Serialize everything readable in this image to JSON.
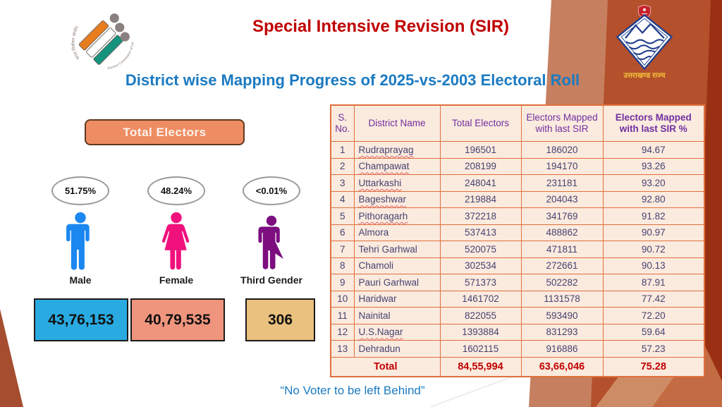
{
  "slide": {
    "title": "Special Intensive Revision (SIR)",
    "subtitle": "District wise Mapping Progress of 2025-vs-2003 Electoral Roll",
    "footer_quote": "“No Voter to be left Behind”"
  },
  "logos": {
    "eci_hindi": "भारत निर्वाचन आयोग",
    "eci_english": "Election Commission of India",
    "state_name": "उत्तराखण्ड राज्य"
  },
  "electors_panel": {
    "badge_label": "Total Electors",
    "genders": [
      {
        "label": "Male",
        "percent": "51.75%",
        "count": "43,76,153",
        "icon_color": "#1B87F0",
        "box_color": "#29ABE2"
      },
      {
        "label": "Female",
        "percent": "48.24%",
        "count": "40,79,535",
        "icon_color": "#F0117C",
        "box_color": "#F0957D"
      },
      {
        "label": "Third Gender",
        "percent": "<0.01%",
        "count": "306",
        "icon_color": "#7C0E80",
        "box_color": "#EAC17E"
      }
    ]
  },
  "table": {
    "headers": [
      "S. No.",
      "District Name",
      "Total Electors",
      "Electors Mapped with last SIR",
      "Electors Mapped with last SIR %"
    ],
    "rows": [
      {
        "sno": "1",
        "district": "Rudraprayag",
        "total_electors": "196501",
        "mapped": "186020",
        "percent": "94.67",
        "misspell": true
      },
      {
        "sno": "2",
        "district": "Champawat",
        "total_electors": "208199",
        "mapped": "194170",
        "percent": "93.26",
        "misspell": true
      },
      {
        "sno": "3",
        "district": "Uttarkashi",
        "total_electors": "248041",
        "mapped": "231181",
        "percent": "93.20",
        "misspell": true
      },
      {
        "sno": "4",
        "district": "Bageshwar",
        "total_electors": "219884",
        "mapped": "204043",
        "percent": "92.80",
        "misspell": true
      },
      {
        "sno": "5",
        "district": "Pithoragarh",
        "total_electors": "372218",
        "mapped": "341769",
        "percent": "91.82",
        "misspell": true
      },
      {
        "sno": "6",
        "district": "Almora",
        "total_electors": "537413",
        "mapped": "488862",
        "percent": "90.97",
        "misspell": false
      },
      {
        "sno": "7",
        "district": "Tehri Garhwal",
        "total_electors": "520075",
        "mapped": "471811",
        "percent": "90.72",
        "misspell": false
      },
      {
        "sno": "8",
        "district": "Chamoli",
        "total_electors": "302534",
        "mapped": "272661",
        "percent": "90.13",
        "misspell": false
      },
      {
        "sno": "9",
        "district": "Pauri Garhwal",
        "total_electors": "571373",
        "mapped": "502282",
        "percent": "87.91",
        "misspell": false
      },
      {
        "sno": "10",
        "district": "Haridwar",
        "total_electors": "1461702",
        "mapped": "1131578",
        "percent": "77.42",
        "misspell": false
      },
      {
        "sno": "11",
        "district": "Nainital",
        "total_electors": "822055",
        "mapped": "593490",
        "percent": "72.20",
        "misspell": false
      },
      {
        "sno": "12",
        "district": "U.S.Nagar",
        "total_electors": "1393884",
        "mapped": "831293",
        "percent": "59.64",
        "misspell": true
      },
      {
        "sno": "13",
        "district": "Dehradun",
        "total_electors": "1602115",
        "mapped": "916886",
        "percent": "57.23",
        "misspell": false
      }
    ],
    "total_row": {
      "label": "Total",
      "total_electors": "84,55,994",
      "mapped": "63,66,046",
      "percent": "75.28"
    }
  },
  "colors": {
    "title_red": "#C00000",
    "heading_blue": "#1B7AC1",
    "table_border_orange": "#E0703C",
    "table_header_purple": "#7030A0",
    "table_cell_text": "#454371",
    "total_row_red": "#C00000",
    "badge_orange": "#EE8C62",
    "bg_rust_dark": "#993014",
    "bg_rust_mid": "#B4502C",
    "bg_rust_light": "#C6805F"
  }
}
